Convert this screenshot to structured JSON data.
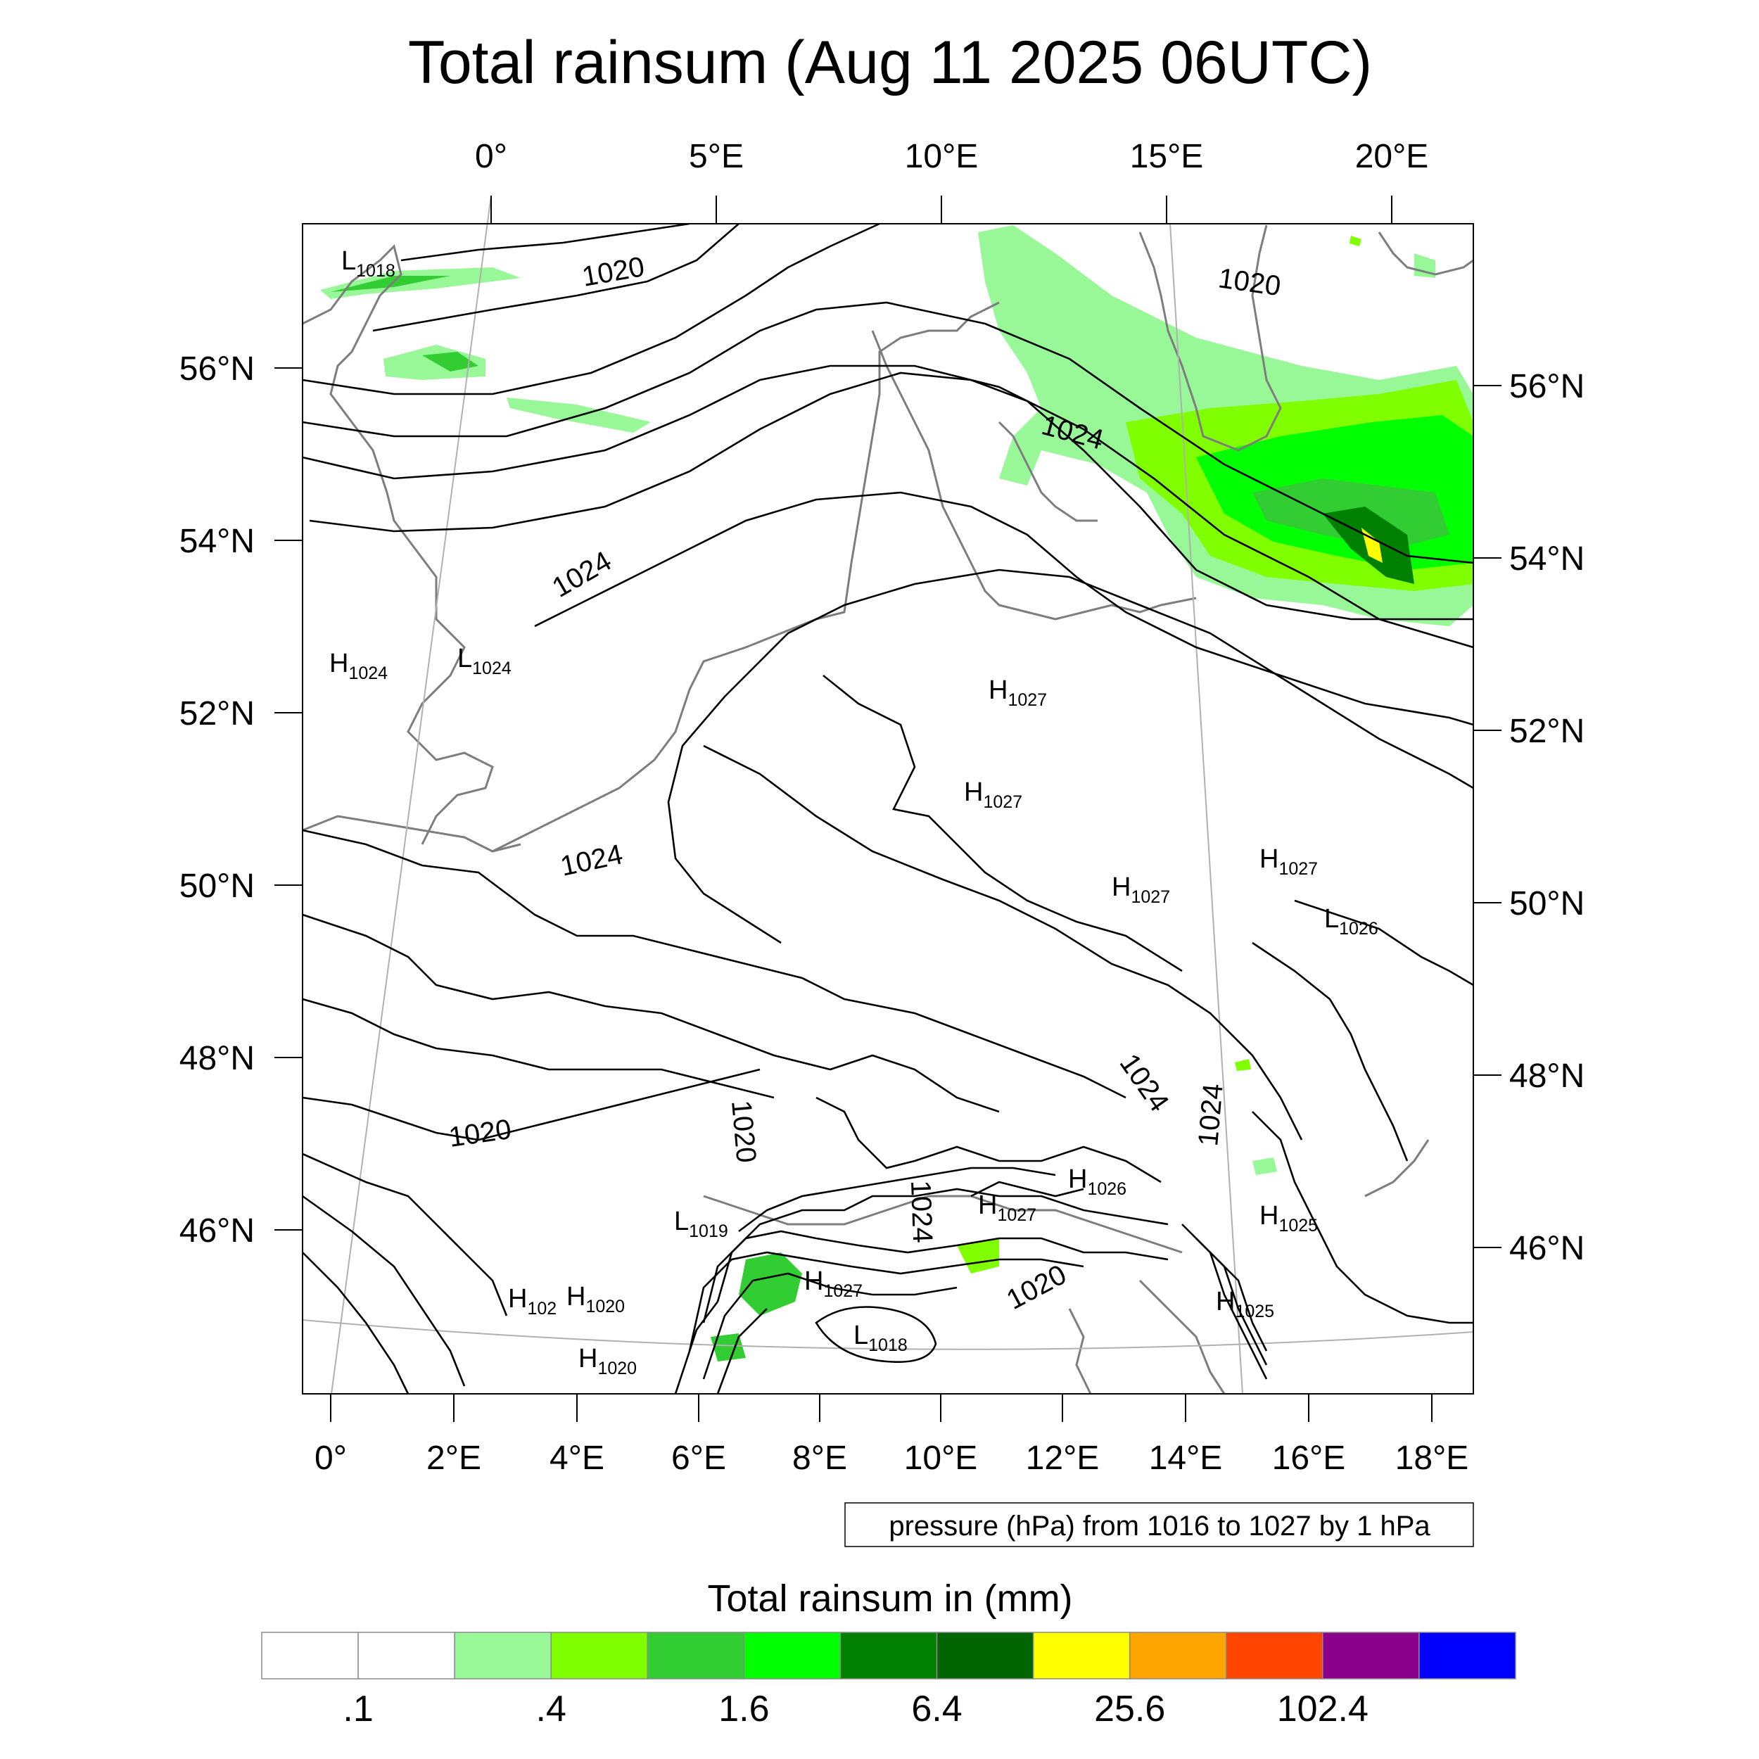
{
  "title": "Total rainsum (Aug 11 2025 06UTC)",
  "top_lon_labels": [
    "0°",
    "5°E",
    "10°E",
    "15°E",
    "20°E"
  ],
  "left_lat_labels": [
    "56°N",
    "54°N",
    "52°N",
    "50°N",
    "48°N",
    "46°N"
  ],
  "right_lat_labels": [
    "56°N",
    "54°N",
    "52°N",
    "50°N",
    "48°N",
    "46°N"
  ],
  "bottom_lon_labels": [
    "0°",
    "2°E",
    "4°E",
    "6°E",
    "8°E",
    "10°E",
    "12°E",
    "14°E",
    "16°E",
    "18°E"
  ],
  "contour_note": "pressure (hPa) from 1016 to 1027 by 1 hPa",
  "colorbar": {
    "title": "Total rainsum in (mm)",
    "colors": [
      "#ffffff",
      "#ffffff",
      "#98f898",
      "#80ff00",
      "#32cd32",
      "#00ff00",
      "#008000",
      "#006400",
      "#ffff00",
      "#ffa500",
      "#ff4500",
      "#8b008b",
      "#0000ff"
    ],
    "labels": [
      ".1",
      ".4",
      "1.6",
      "6.4",
      "25.6",
      "102.4"
    ]
  },
  "pressure_centers": [
    {
      "type": "L",
      "value": "1018"
    },
    {
      "type": "H",
      "value": "1024"
    },
    {
      "type": "L",
      "value": "1024"
    },
    {
      "type": "H",
      "value": "1027"
    },
    {
      "type": "H",
      "value": "1027"
    },
    {
      "type": "H",
      "value": "1027"
    },
    {
      "type": "H",
      "value": "1027"
    },
    {
      "type": "L",
      "value": "1026"
    },
    {
      "type": "L",
      "value": "1019"
    },
    {
      "type": "H",
      "value": "1027"
    },
    {
      "type": "H",
      "value": "1026"
    },
    {
      "type": "H",
      "value": "1025"
    },
    {
      "type": "H",
      "value": "1027"
    },
    {
      "type": "H",
      "value": "102"
    },
    {
      "type": "H",
      "value": "1020"
    },
    {
      "type": "H",
      "value": "1020"
    },
    {
      "type": "L",
      "value": "1018"
    },
    {
      "type": "H",
      "value": "1025"
    }
  ],
  "contour_labels": [
    "1020",
    "1020",
    "1024",
    "1024",
    "1024",
    "1020",
    "1020",
    "1024",
    "1024",
    "1024",
    "1020"
  ]
}
